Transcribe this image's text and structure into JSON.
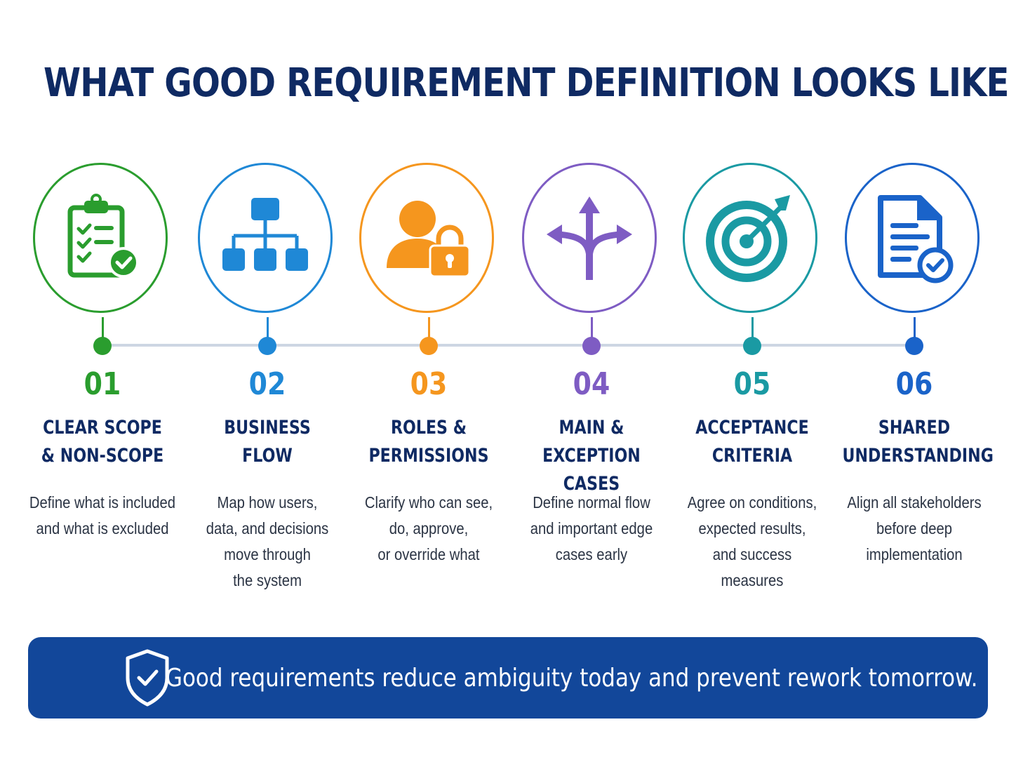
{
  "title": "WHAT GOOD REQUIREMENT DEFINITION LOOKS LIKE",
  "steps": [
    {
      "number": "01",
      "label": "CLEAR SCOPE\n& NON-SCOPE",
      "description": "Define what is included\nand what is excluded",
      "icon": "clipboard-check-icon",
      "color": "#2a9d2e"
    },
    {
      "number": "02",
      "label": "BUSINESS\nFLOW",
      "description": "Map how users,\ndata, and decisions\nmove through\nthe system",
      "icon": "hierarchy-flow-icon",
      "color": "#1f88d6"
    },
    {
      "number": "03",
      "label": "ROLES &\nPERMISSIONS",
      "description": "Clarify who can see,\ndo, approve,\nor override what",
      "icon": "user-lock-icon",
      "color": "#f5961e"
    },
    {
      "number": "04",
      "label": "MAIN & EXCEPTION\nCASES",
      "description": "Define normal flow\nand important edge\ncases early",
      "icon": "split-arrows-icon",
      "color": "#7e5cc3"
    },
    {
      "number": "05",
      "label": "ACCEPTANCE\nCRITERIA",
      "description": "Agree on conditions,\nexpected results,\nand success\nmeasures",
      "icon": "target-arrow-icon",
      "color": "#1a9aa3"
    },
    {
      "number": "06",
      "label": "SHARED\nUNDERSTANDING",
      "description": "Align all stakeholders\nbefore deep\nimplementation",
      "icon": "document-check-icon",
      "color": "#1a63c9"
    }
  ],
  "banner": {
    "text": "Good requirements reduce ambiguity today and prevent rework tomorrow.",
    "icon": "shield-check-icon",
    "color": "#12479a"
  },
  "colors": {
    "title": "#0f2a63",
    "connector": "#cdd6e3"
  }
}
